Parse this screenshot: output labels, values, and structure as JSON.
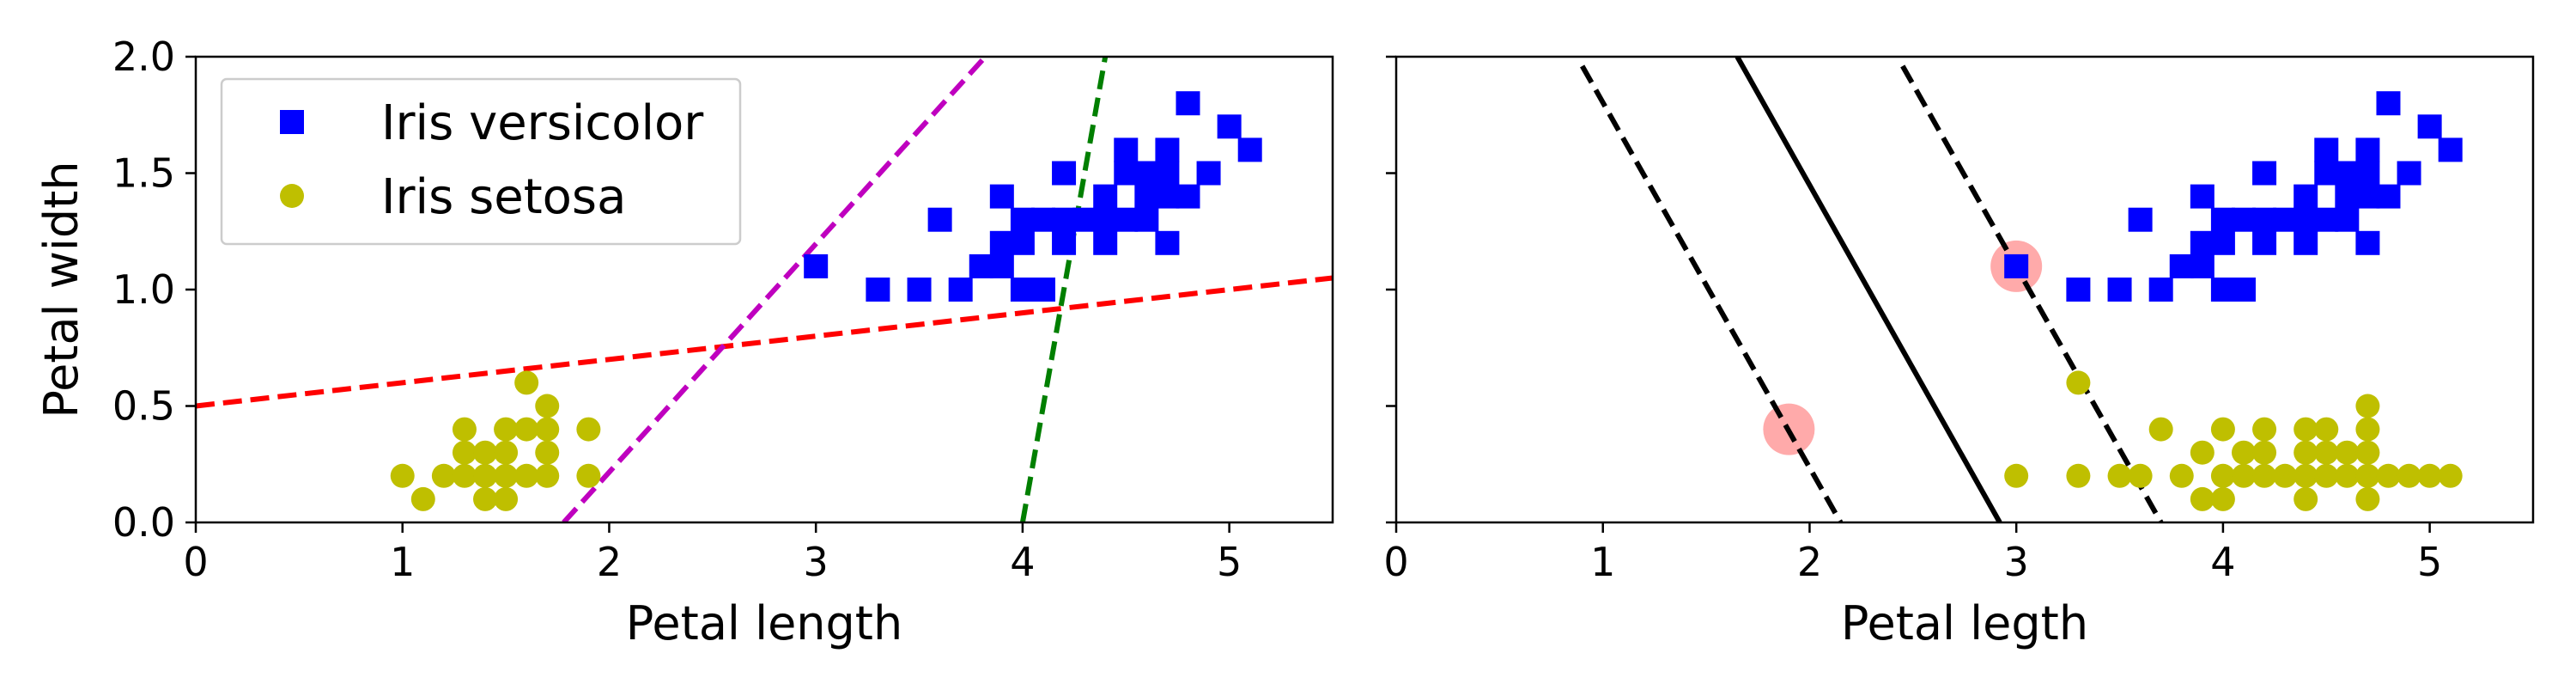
{
  "chart_data": [
    {
      "type": "scatter",
      "title": "",
      "xlabel": "Petal length",
      "ylabel": "Petal width",
      "xlim": [
        0,
        5.5
      ],
      "ylim": [
        0,
        2.0
      ],
      "xticks": [
        "0",
        "1",
        "2",
        "3",
        "4",
        "5"
      ],
      "yticks": [
        "0.0",
        "0.5",
        "1.0",
        "1.5",
        "2.0"
      ],
      "legend": {
        "placement": "upper-left",
        "entries": [
          "Iris versicolor",
          "Iris setosa"
        ]
      },
      "series": [
        {
          "name": "Iris versicolor",
          "marker": "square",
          "color": "#0000ff",
          "points": [
            [
              3.0,
              1.1
            ],
            [
              3.3,
              1.0
            ],
            [
              3.5,
              1.0
            ],
            [
              3.6,
              1.3
            ],
            [
              3.7,
              1.0
            ],
            [
              3.8,
              1.1
            ],
            [
              3.9,
              1.1
            ],
            [
              3.9,
              1.2
            ],
            [
              3.9,
              1.4
            ],
            [
              4.0,
              1.0
            ],
            [
              4.0,
              1.2
            ],
            [
              4.0,
              1.3
            ],
            [
              4.1,
              1.0
            ],
            [
              4.1,
              1.3
            ],
            [
              4.2,
              1.2
            ],
            [
              4.2,
              1.3
            ],
            [
              4.2,
              1.5
            ],
            [
              4.3,
              1.3
            ],
            [
              4.4,
              1.2
            ],
            [
              4.4,
              1.3
            ],
            [
              4.4,
              1.4
            ],
            [
              4.5,
              1.3
            ],
            [
              4.5,
              1.5
            ],
            [
              4.5,
              1.6
            ],
            [
              4.6,
              1.3
            ],
            [
              4.6,
              1.4
            ],
            [
              4.6,
              1.5
            ],
            [
              4.7,
              1.2
            ],
            [
              4.7,
              1.4
            ],
            [
              4.7,
              1.5
            ],
            [
              4.7,
              1.6
            ],
            [
              4.8,
              1.4
            ],
            [
              4.8,
              1.8
            ],
            [
              4.9,
              1.5
            ],
            [
              5.0,
              1.7
            ],
            [
              5.1,
              1.6
            ]
          ]
        },
        {
          "name": "Iris setosa",
          "marker": "circle",
          "color": "#bfbf00",
          "points": [
            [
              1.0,
              0.2
            ],
            [
              1.1,
              0.1
            ],
            [
              1.2,
              0.2
            ],
            [
              1.3,
              0.2
            ],
            [
              1.3,
              0.3
            ],
            [
              1.3,
              0.4
            ],
            [
              1.4,
              0.1
            ],
            [
              1.4,
              0.2
            ],
            [
              1.4,
              0.3
            ],
            [
              1.5,
              0.1
            ],
            [
              1.5,
              0.2
            ],
            [
              1.5,
              0.3
            ],
            [
              1.5,
              0.4
            ],
            [
              1.6,
              0.2
            ],
            [
              1.6,
              0.4
            ],
            [
              1.6,
              0.6
            ],
            [
              1.7,
              0.2
            ],
            [
              1.7,
              0.3
            ],
            [
              1.7,
              0.4
            ],
            [
              1.7,
              0.5
            ],
            [
              1.9,
              0.2
            ],
            [
              1.9,
              0.4
            ]
          ]
        }
      ],
      "lines": [
        {
          "color": "#ff0000",
          "style": "dashed",
          "points": [
            [
              0,
              0.5
            ],
            [
              5.5,
              1.05
            ]
          ]
        },
        {
          "color": "#bf00bf",
          "style": "dashed",
          "points": [
            [
              1.78,
              0
            ],
            [
              3.82,
              2.0
            ]
          ]
        },
        {
          "color": "#007f00",
          "style": "dashed",
          "points": [
            [
              4.0,
              0
            ],
            [
              4.4,
              2.0
            ]
          ]
        }
      ]
    },
    {
      "type": "scatter",
      "title": "",
      "xlabel": "Petal legth",
      "ylabel": "",
      "xlim": [
        0,
        5.5
      ],
      "ylim": [
        0,
        2.0
      ],
      "xticks": [
        "0",
        "1",
        "2",
        "3",
        "4",
        "5"
      ],
      "yticks": [],
      "support_vectors": {
        "color": "#ffaaaa",
        "points": [
          [
            1.9,
            0.4
          ],
          [
            3.0,
            1.1
          ]
        ]
      },
      "series": [
        {
          "name": "Iris versicolor",
          "marker": "square",
          "color": "#0000ff",
          "points": [
            [
              3.0,
              1.1
            ],
            [
              3.3,
              1.0
            ],
            [
              3.5,
              1.0
            ],
            [
              3.6,
              1.3
            ],
            [
              3.7,
              1.0
            ],
            [
              3.8,
              1.1
            ],
            [
              3.9,
              1.1
            ],
            [
              3.9,
              1.2
            ],
            [
              3.9,
              1.4
            ],
            [
              4.0,
              1.0
            ],
            [
              4.0,
              1.2
            ],
            [
              4.0,
              1.3
            ],
            [
              4.1,
              1.0
            ],
            [
              4.1,
              1.3
            ],
            [
              4.2,
              1.2
            ],
            [
              4.2,
              1.3
            ],
            [
              4.2,
              1.5
            ],
            [
              4.3,
              1.3
            ],
            [
              4.4,
              1.2
            ],
            [
              4.4,
              1.3
            ],
            [
              4.4,
              1.4
            ],
            [
              4.5,
              1.3
            ],
            [
              4.5,
              1.5
            ],
            [
              4.5,
              1.6
            ],
            [
              4.6,
              1.3
            ],
            [
              4.6,
              1.4
            ],
            [
              4.6,
              1.5
            ],
            [
              4.7,
              1.2
            ],
            [
              4.7,
              1.4
            ],
            [
              4.7,
              1.5
            ],
            [
              4.7,
              1.6
            ],
            [
              4.8,
              1.4
            ],
            [
              4.8,
              1.8
            ],
            [
              4.9,
              1.5
            ],
            [
              5.0,
              1.7
            ],
            [
              5.1,
              1.6
            ]
          ]
        },
        {
          "name": "Iris setosa",
          "marker": "circle",
          "color": "#bfbf00",
          "points": [
            [
              3.0,
              0.2
            ],
            [
              3.3,
              0.2
            ],
            [
              3.3,
              0.6
            ],
            [
              3.5,
              0.2
            ],
            [
              3.6,
              0.2
            ],
            [
              3.7,
              0.4
            ],
            [
              3.8,
              0.2
            ],
            [
              3.9,
              0.1
            ],
            [
              3.9,
              0.3
            ],
            [
              4.0,
              0.1
            ],
            [
              4.0,
              0.2
            ],
            [
              4.0,
              0.4
            ],
            [
              4.1,
              0.2
            ],
            [
              4.1,
              0.3
            ],
            [
              4.2,
              0.2
            ],
            [
              4.2,
              0.3
            ],
            [
              4.2,
              0.4
            ],
            [
              4.3,
              0.2
            ],
            [
              4.4,
              0.2
            ],
            [
              4.4,
              0.3
            ],
            [
              4.4,
              0.4
            ],
            [
              4.4,
              0.1
            ],
            [
              4.5,
              0.2
            ],
            [
              4.5,
              0.3
            ],
            [
              4.5,
              0.4
            ],
            [
              4.6,
              0.2
            ],
            [
              4.6,
              0.3
            ],
            [
              4.7,
              0.1
            ],
            [
              4.7,
              0.2
            ],
            [
              4.7,
              0.3
            ],
            [
              4.7,
              0.4
            ],
            [
              4.7,
              0.5
            ],
            [
              4.8,
              0.2
            ],
            [
              4.9,
              0.2
            ],
            [
              5.0,
              0.2
            ],
            [
              5.1,
              0.2
            ]
          ]
        }
      ],
      "lines": [
        {
          "color": "#000000",
          "style": "solid",
          "points": [
            [
              1.65,
              2.0
            ],
            [
              2.92,
              0
            ]
          ]
        },
        {
          "color": "#000000",
          "style": "dashed",
          "points": [
            [
              0.9,
              1.96
            ],
            [
              2.15,
              0
            ]
          ]
        },
        {
          "color": "#000000",
          "style": "dashed",
          "points": [
            [
              2.45,
              1.96
            ],
            [
              3.7,
              0
            ]
          ]
        }
      ]
    }
  ]
}
